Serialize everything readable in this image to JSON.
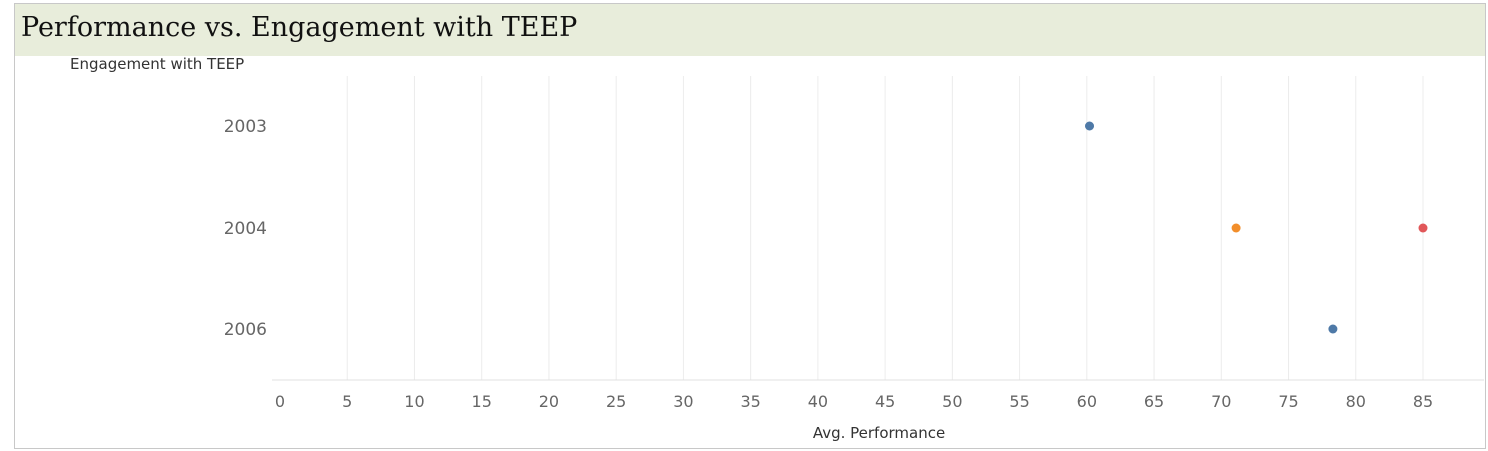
{
  "dashboard": {
    "title": "Performance vs. Engagement with TEEP"
  },
  "chart_data": {
    "type": "scatter",
    "title": "Performance vs. Engagement with TEEP",
    "xlabel": "Avg. Performance",
    "ylabel": "Engagement with TEEP",
    "xlim": [
      0,
      89
    ],
    "x_ticks": [
      0,
      5,
      10,
      15,
      20,
      25,
      30,
      35,
      40,
      45,
      50,
      55,
      60,
      65,
      70,
      75,
      80,
      85
    ],
    "categories": [
      "2003",
      "2004",
      "2006"
    ],
    "grid": "vertical",
    "legend": "none",
    "points": [
      {
        "category": "2003",
        "x": 60.2,
        "color": "#4e79a7"
      },
      {
        "category": "2004",
        "x": 71.1,
        "color": "#f28e2b"
      },
      {
        "category": "2004",
        "x": 85.0,
        "color": "#e15759"
      },
      {
        "category": "2006",
        "x": 78.3,
        "color": "#4e79a7"
      }
    ]
  }
}
